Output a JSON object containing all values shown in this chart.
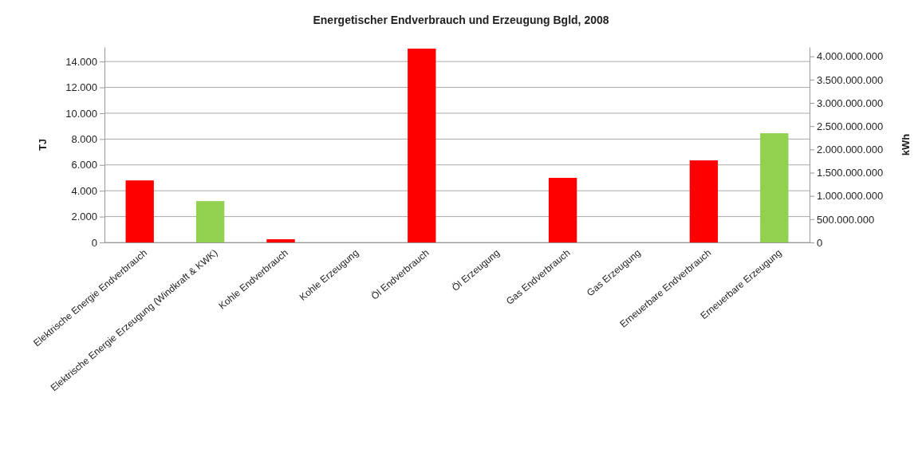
{
  "chart_data": {
    "type": "bar",
    "title": "Energetischer Endverbrauch und Erzeugung Bgld, 2008",
    "ylabel": "TJ",
    "y2label": "kWh",
    "categories": [
      "Elektrische Energie Endverbrauch",
      "Elektrische Energie Erzeugung (Windkraft & KWK)",
      "Kohle Endverbrauch",
      "Kohle Erzeugung",
      "Öl Endverbrauch",
      "Öl Erzeugung",
      "Gas Endverbrauch",
      "Gas Erzeugung",
      "Erneuerbare Endverbrauch",
      "Erneuerbare Erzeugung"
    ],
    "values": [
      4800,
      3200,
      250,
      0,
      15000,
      0,
      5000,
      0,
      6350,
      8450
    ],
    "colors": [
      "#ff0000",
      "#92d050",
      "#ff0000",
      "#92d050",
      "#ff0000",
      "#92d050",
      "#ff0000",
      "#92d050",
      "#ff0000",
      "#92d050"
    ],
    "ylim": [
      0,
      15120
    ],
    "yticks": [
      0,
      {
        "value": 2000,
        "label": "2.000"
      },
      {
        "value": 4000,
        "label": "4.000"
      },
      {
        "value": 6000,
        "label": "6.000"
      },
      {
        "value": 8000,
        "label": "8.000"
      },
      {
        "value": 10000,
        "label": "10.000"
      },
      {
        "value": 12000,
        "label": "12.000"
      },
      {
        "value": 14000,
        "label": "14.000"
      }
    ],
    "y2lim": [
      0,
      4200000000
    ],
    "y2ticks": [
      0,
      {
        "value": 500000000,
        "label": "500.000.000"
      },
      {
        "value": 1000000000,
        "label": "1.000.000.000"
      },
      {
        "value": 1500000000,
        "label": "1.500.000.000"
      },
      {
        "value": 2000000000,
        "label": "2.000.000.000"
      },
      {
        "value": 2500000000,
        "label": "2.500.000.000"
      },
      {
        "value": 3000000000,
        "label": "3.000.000.000"
      },
      {
        "value": 3500000000,
        "label": "3.500.000.000"
      },
      {
        "value": 4000000000,
        "label": "4.000.000.000"
      }
    ],
    "grid": "y"
  }
}
